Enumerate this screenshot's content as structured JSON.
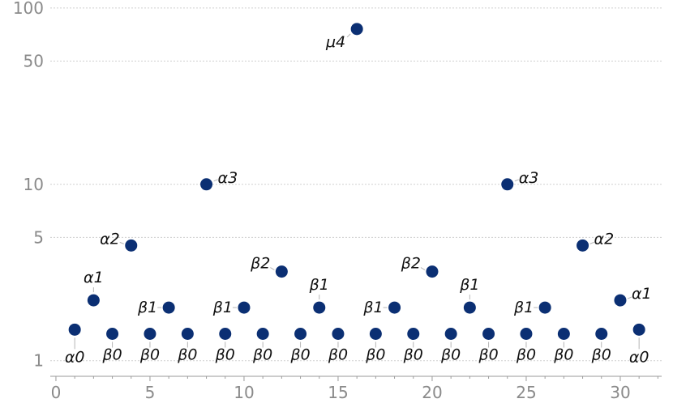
{
  "chart_data": {
    "type": "scatter",
    "title": "",
    "xlabel": "",
    "ylabel": "",
    "x_scale": "linear",
    "y_scale": "log",
    "xlim": [
      -0.3,
      32.2
    ],
    "ylim": [
      0.79,
      102
    ],
    "x_ticks": [
      0,
      5,
      10,
      15,
      20,
      25,
      30
    ],
    "x_tick_labels": [
      "0",
      "5",
      "10",
      "15",
      "20",
      "25",
      "30"
    ],
    "y_ticks": [
      1,
      5,
      10,
      50,
      100
    ],
    "y_tick_labels": [
      "1",
      "5",
      "10",
      "50",
      "100"
    ],
    "grid": "horizontal dotted at y ticks",
    "marker_color": "#0b2f73",
    "points": [
      {
        "x": 1,
        "y": 1.5,
        "label": "α0"
      },
      {
        "x": 2,
        "y": 2.2,
        "label": "α1"
      },
      {
        "x": 3,
        "y": 1.42,
        "label": "β0"
      },
      {
        "x": 4,
        "y": 4.5,
        "label": "α2"
      },
      {
        "x": 5,
        "y": 1.42,
        "label": "β0"
      },
      {
        "x": 6,
        "y": 2.0,
        "label": "β1"
      },
      {
        "x": 7,
        "y": 1.42,
        "label": "β0"
      },
      {
        "x": 8,
        "y": 10,
        "label": "α3"
      },
      {
        "x": 9,
        "y": 1.42,
        "label": "β0"
      },
      {
        "x": 10,
        "y": 2.0,
        "label": "β1"
      },
      {
        "x": 11,
        "y": 1.42,
        "label": "β0"
      },
      {
        "x": 12,
        "y": 3.2,
        "label": "β2"
      },
      {
        "x": 13,
        "y": 1.42,
        "label": "β0"
      },
      {
        "x": 14,
        "y": 2.0,
        "label": "β1"
      },
      {
        "x": 15,
        "y": 1.42,
        "label": "β0"
      },
      {
        "x": 16,
        "y": 76,
        "label": "μ4"
      },
      {
        "x": 17,
        "y": 1.42,
        "label": "β0"
      },
      {
        "x": 18,
        "y": 2.0,
        "label": "β1"
      },
      {
        "x": 19,
        "y": 1.42,
        "label": "β0"
      },
      {
        "x": 20,
        "y": 3.2,
        "label": "β2"
      },
      {
        "x": 21,
        "y": 1.42,
        "label": "β0"
      },
      {
        "x": 22,
        "y": 2.0,
        "label": "β1"
      },
      {
        "x": 23,
        "y": 1.42,
        "label": "β0"
      },
      {
        "x": 24,
        "y": 10,
        "label": "α3"
      },
      {
        "x": 25,
        "y": 1.42,
        "label": "β0"
      },
      {
        "x": 26,
        "y": 2.0,
        "label": "β1"
      },
      {
        "x": 27,
        "y": 1.42,
        "label": "β0"
      },
      {
        "x": 28,
        "y": 4.5,
        "label": "α2"
      },
      {
        "x": 29,
        "y": 1.42,
        "label": "β0"
      },
      {
        "x": 30,
        "y": 2.2,
        "label": "α1"
      },
      {
        "x": 31,
        "y": 1.5,
        "label": "α0"
      }
    ]
  }
}
